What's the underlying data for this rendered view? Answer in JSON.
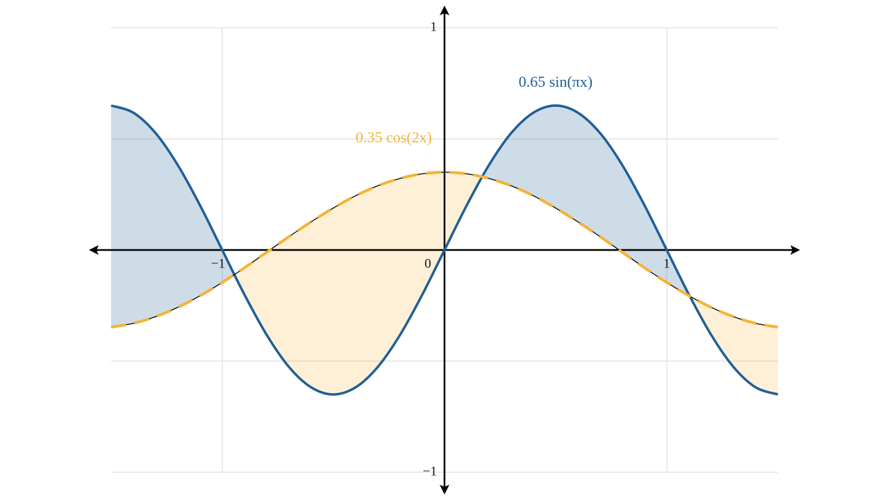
{
  "chart_data": {
    "type": "line",
    "x": [
      -1.5,
      -1.4,
      -1.3,
      -1.2,
      -1.1,
      -1.0,
      -0.9,
      -0.8,
      -0.7,
      -0.6,
      -0.5,
      -0.4,
      -0.3,
      -0.2,
      -0.1,
      0,
      0.1,
      0.2,
      0.3,
      0.4,
      0.5,
      0.6,
      0.7,
      0.8,
      0.9,
      1.0,
      1.1,
      1.2,
      1.3,
      1.4,
      1.5
    ],
    "series": [
      {
        "name": "0.65 sin(πx)",
        "color": "#1f5f96",
        "values": [
          0.65,
          0.618,
          0.526,
          0.382,
          0.201,
          0,
          -0.201,
          -0.382,
          -0.526,
          -0.618,
          -0.65,
          -0.618,
          -0.526,
          -0.382,
          -0.201,
          0,
          0.201,
          0.382,
          0.526,
          0.618,
          0.65,
          0.618,
          0.526,
          0.382,
          0.201,
          0,
          -0.201,
          -0.382,
          -0.526,
          -0.618,
          -0.65
        ]
      },
      {
        "name": "0.35 cos(2x)",
        "color": "#f5b335",
        "dashed": true,
        "values": [
          -0.347,
          -0.33,
          -0.3,
          -0.258,
          -0.206,
          -0.146,
          -0.08,
          -0.01,
          0.06,
          0.127,
          0.189,
          0.244,
          0.289,
          0.322,
          0.343,
          0.35,
          0.343,
          0.322,
          0.289,
          0.244,
          0.189,
          0.127,
          0.06,
          -0.01,
          -0.08,
          -0.146,
          -0.206,
          -0.258,
          -0.3,
          -0.33,
          -0.347
        ]
      }
    ],
    "fill_between": true,
    "xlim": [
      -1.5,
      1.5
    ],
    "ylim": [
      -1,
      1
    ],
    "xticks": [
      {
        "value": -1,
        "label": "−1"
      },
      0,
      1
    ],
    "yticks": [
      {
        "value": -1,
        "label": "−1"
      },
      1
    ],
    "grid_y": [
      -1,
      -0.5,
      0.5,
      1
    ],
    "grid": true
  }
}
